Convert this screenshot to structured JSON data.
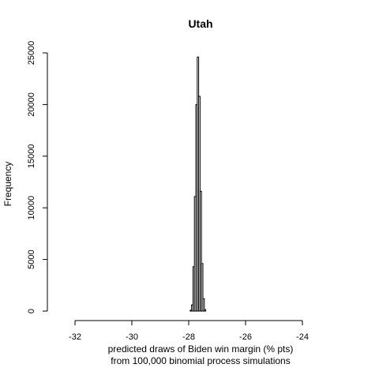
{
  "chart_data": {
    "type": "bar",
    "title": "Utah",
    "xlabel": "predicted draws of Biden win margin (% pts)",
    "xlabel2": "from 100,000 binomial process simulations",
    "ylabel": "Frequency",
    "xlim": [
      -32,
      -24
    ],
    "ylim": [
      0,
      25000
    ],
    "x_ticks": [
      -32,
      -30,
      -28,
      -26,
      -24
    ],
    "x_tick_labels": [
      "-32",
      "-30",
      "-28",
      "-26",
      "-24"
    ],
    "y_ticks": [
      0,
      5000,
      10000,
      15000,
      20000,
      25000
    ],
    "y_tick_labels": [
      "0",
      "5000",
      "10000",
      "15000",
      "20000",
      "25000"
    ],
    "bin_width": 0.05,
    "bins": [
      {
        "x0": -27.95,
        "x1": -27.9,
        "value": 80
      },
      {
        "x0": -27.9,
        "x1": -27.85,
        "value": 600
      },
      {
        "x0": -27.85,
        "x1": -27.8,
        "value": 4300
      },
      {
        "x0": -27.8,
        "x1": -27.75,
        "value": 11100
      },
      {
        "x0": -27.75,
        "x1": -27.7,
        "value": 20000
      },
      {
        "x0": -27.7,
        "x1": -27.65,
        "value": 24600
      },
      {
        "x0": -27.65,
        "x1": -27.6,
        "value": 20800
      },
      {
        "x0": -27.6,
        "x1": -27.55,
        "value": 11600
      },
      {
        "x0": -27.55,
        "x1": -27.5,
        "value": 4600
      },
      {
        "x0": -27.5,
        "x1": -27.45,
        "value": 1200
      },
      {
        "x0": -27.45,
        "x1": -27.4,
        "value": 150
      }
    ]
  }
}
